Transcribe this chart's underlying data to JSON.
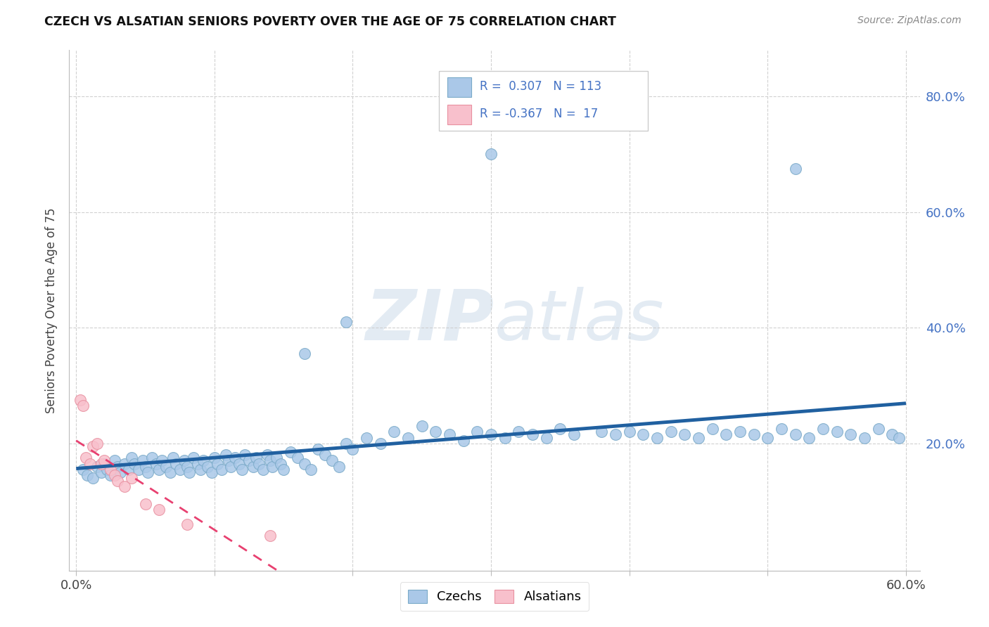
{
  "title": "CZECH VS ALSATIAN SENIORS POVERTY OVER THE AGE OF 75 CORRELATION CHART",
  "source": "Source: ZipAtlas.com",
  "ylabel": "Seniors Poverty Over the Age of 75",
  "xlim": [
    -0.005,
    0.61
  ],
  "ylim": [
    -0.02,
    0.88
  ],
  "x_ticks": [
    0.0,
    0.1,
    0.2,
    0.3,
    0.4,
    0.5,
    0.6
  ],
  "x_tick_labels": [
    "0.0%",
    "",
    "",
    "",
    "",
    "",
    "60.0%"
  ],
  "y_ticks": [
    0.2,
    0.4,
    0.6,
    0.8
  ],
  "y_tick_labels": [
    "20.0%",
    "40.0%",
    "60.0%",
    "80.0%"
  ],
  "blue_scatter_color": "#aac8e8",
  "blue_scatter_edge": "#7aaac8",
  "pink_scatter_color": "#f8c0cc",
  "pink_scatter_edge": "#e890a0",
  "blue_line_color": "#2060a0",
  "pink_line_color": "#e84070",
  "watermark_color": "#c8d8e8",
  "legend_box_color": "#cccccc",
  "legend_text_color": "#4472c4",
  "title_color": "#111111",
  "source_color": "#888888",
  "grid_color": "#cccccc",
  "czechs_x": [
    0.005,
    0.008,
    0.012,
    0.015,
    0.018,
    0.02,
    0.022,
    0.025,
    0.028,
    0.03,
    0.032,
    0.035,
    0.038,
    0.04,
    0.042,
    0.045,
    0.048,
    0.05,
    0.052,
    0.055,
    0.058,
    0.06,
    0.062,
    0.065,
    0.068,
    0.07,
    0.072,
    0.075,
    0.078,
    0.08,
    0.082,
    0.085,
    0.088,
    0.09,
    0.092,
    0.095,
    0.098,
    0.1,
    0.102,
    0.105,
    0.108,
    0.11,
    0.112,
    0.115,
    0.118,
    0.12,
    0.122,
    0.125,
    0.128,
    0.13,
    0.132,
    0.135,
    0.138,
    0.14,
    0.142,
    0.145,
    0.148,
    0.15,
    0.155,
    0.16,
    0.165,
    0.17,
    0.175,
    0.18,
    0.185,
    0.19,
    0.195,
    0.2,
    0.21,
    0.22,
    0.23,
    0.24,
    0.25,
    0.26,
    0.27,
    0.28,
    0.29,
    0.3,
    0.31,
    0.32,
    0.33,
    0.34,
    0.35,
    0.36,
    0.38,
    0.39,
    0.4,
    0.41,
    0.42,
    0.43,
    0.44,
    0.45,
    0.46,
    0.47,
    0.48,
    0.49,
    0.5,
    0.51,
    0.52,
    0.53,
    0.54,
    0.55,
    0.56,
    0.57,
    0.58,
    0.59,
    0.595,
    0.3,
    0.52,
    0.195,
    0.165
  ],
  "czechs_y": [
    0.155,
    0.145,
    0.14,
    0.16,
    0.15,
    0.165,
    0.155,
    0.145,
    0.17,
    0.16,
    0.15,
    0.165,
    0.155,
    0.175,
    0.165,
    0.155,
    0.17,
    0.16,
    0.15,
    0.175,
    0.165,
    0.155,
    0.17,
    0.16,
    0.15,
    0.175,
    0.165,
    0.155,
    0.17,
    0.16,
    0.15,
    0.175,
    0.165,
    0.155,
    0.17,
    0.16,
    0.15,
    0.175,
    0.165,
    0.155,
    0.18,
    0.17,
    0.16,
    0.175,
    0.165,
    0.155,
    0.18,
    0.17,
    0.16,
    0.175,
    0.165,
    0.155,
    0.18,
    0.17,
    0.16,
    0.175,
    0.165,
    0.155,
    0.185,
    0.175,
    0.165,
    0.155,
    0.19,
    0.18,
    0.17,
    0.16,
    0.2,
    0.19,
    0.21,
    0.2,
    0.22,
    0.21,
    0.23,
    0.22,
    0.215,
    0.205,
    0.22,
    0.215,
    0.21,
    0.22,
    0.215,
    0.21,
    0.225,
    0.215,
    0.22,
    0.215,
    0.22,
    0.215,
    0.21,
    0.22,
    0.215,
    0.21,
    0.225,
    0.215,
    0.22,
    0.215,
    0.21,
    0.225,
    0.215,
    0.21,
    0.225,
    0.22,
    0.215,
    0.21,
    0.225,
    0.215,
    0.21,
    0.7,
    0.675,
    0.41,
    0.355
  ],
  "alsatians_x": [
    0.003,
    0.005,
    0.007,
    0.01,
    0.012,
    0.015,
    0.018,
    0.02,
    0.025,
    0.028,
    0.03,
    0.035,
    0.04,
    0.05,
    0.06,
    0.08,
    0.14
  ],
  "alsatians_y": [
    0.275,
    0.265,
    0.175,
    0.165,
    0.195,
    0.2,
    0.165,
    0.17,
    0.155,
    0.145,
    0.135,
    0.125,
    0.14,
    0.095,
    0.085,
    0.06,
    0.04
  ]
}
